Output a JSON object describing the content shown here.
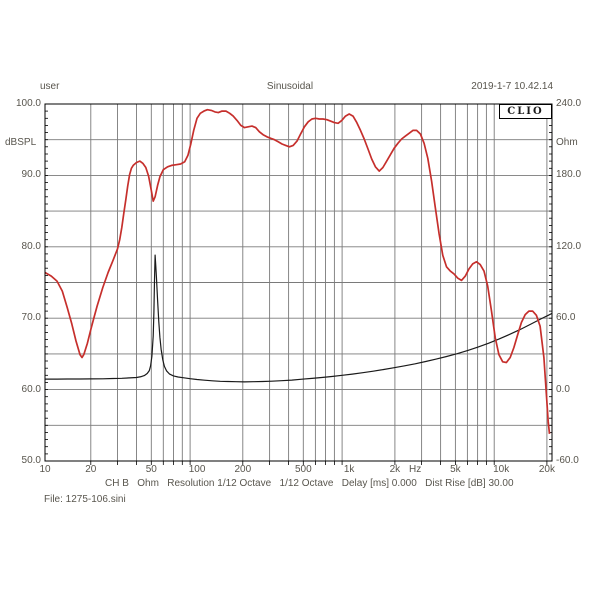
{
  "header": {
    "user": "user",
    "title": "Sinusoidal",
    "timestamp": "2019-1-7 10.42.14"
  },
  "badge": {
    "label": "CLIO"
  },
  "status_line": {
    "segments": [
      "CH B",
      "Ohm",
      "Resolution 1/12 Octave",
      "1/12 Octave",
      "Delay [ms] 0.000",
      "Dist Rise [dB] 30.00"
    ],
    "text": "CH B   Ohm   Resolution 1/12 Octave   1/12 Octave   Delay [ms] 0.000   Dist Rise [dB] 30.00"
  },
  "file_line": "File: 1275-106.sini",
  "colors": {
    "spl_curve": "#c62f2c",
    "impedance_curve": "#1a1a1a",
    "grid": "#7a7a7a",
    "border": "#000000",
    "text": "#58554d"
  },
  "chart_data": {
    "type": "line",
    "title": "Sinusoidal",
    "grid": true,
    "legend": "none",
    "x": {
      "scale": "log",
      "min": 10,
      "max": 21600,
      "unit": "Hz",
      "ticks": [
        {
          "f": 10,
          "label": "10"
        },
        {
          "f": 20,
          "label": "20"
        },
        {
          "f": 50,
          "label": "50"
        },
        {
          "f": 100,
          "label": "100"
        },
        {
          "f": 200,
          "label": "200"
        },
        {
          "f": 500,
          "label": "500"
        },
        {
          "f": 1000,
          "label": "1k"
        },
        {
          "f": 2000,
          "label": "2k"
        },
        {
          "f": 5000,
          "label": "5k"
        },
        {
          "f": 10000,
          "label": "10k"
        },
        {
          "f": 20000,
          "label": "20k"
        }
      ]
    },
    "y_left": {
      "label": "dBSPL",
      "min": 50,
      "max": 100,
      "gridline_step": 5,
      "ticks": [
        {
          "value": 100,
          "label": "100.0"
        },
        {
          "value": 90,
          "label": "90.0"
        },
        {
          "value": 80,
          "label": "80.0"
        },
        {
          "value": 70,
          "label": "70.0"
        },
        {
          "value": 60,
          "label": "60.0"
        },
        {
          "value": 50,
          "label": "50.0"
        }
      ]
    },
    "y_right": {
      "label": "Ohm",
      "min": -60,
      "max": 240,
      "ticks": [
        {
          "value": 240,
          "label": "240.0"
        },
        {
          "value": 180,
          "label": "180.0"
        },
        {
          "value": 120,
          "label": "120.0"
        },
        {
          "value": 60,
          "label": "60.0"
        },
        {
          "value": 0,
          "label": "0.0"
        },
        {
          "value": -60,
          "label": "-60.0"
        }
      ]
    },
    "series": [
      {
        "name": "SPL frequency response",
        "axis": "left",
        "unit": "dBSPL",
        "color": "#c62f2c",
        "points": [
          [
            10,
            76.4
          ],
          [
            11,
            75.9
          ],
          [
            12,
            75.2
          ],
          [
            13,
            73.8
          ],
          [
            14,
            71.5
          ],
          [
            15,
            69.2
          ],
          [
            16,
            66.8
          ],
          [
            17,
            64.9
          ],
          [
            17.5,
            64.5
          ],
          [
            18,
            64.9
          ],
          [
            19,
            66.5
          ],
          [
            20,
            68.4
          ],
          [
            21,
            70.1
          ],
          [
            22,
            71.7
          ],
          [
            24,
            74.3
          ],
          [
            26,
            76.4
          ],
          [
            28,
            78.1
          ],
          [
            30,
            79.7
          ],
          [
            31,
            81
          ],
          [
            32,
            82.7
          ],
          [
            33,
            84.7
          ],
          [
            34,
            86.6
          ],
          [
            35,
            88.5
          ],
          [
            36,
            90.1
          ],
          [
            37,
            91
          ],
          [
            38,
            91.4
          ],
          [
            40,
            91.8
          ],
          [
            42,
            92
          ],
          [
            44,
            91.7
          ],
          [
            46,
            91.1
          ],
          [
            48,
            89.9
          ],
          [
            50,
            87.9
          ],
          [
            51.5,
            86.4
          ],
          [
            53,
            87
          ],
          [
            55,
            88.6
          ],
          [
            57,
            89.8
          ],
          [
            60,
            90.8
          ],
          [
            64,
            91.2
          ],
          [
            68,
            91.4
          ],
          [
            73,
            91.5
          ],
          [
            78,
            91.6
          ],
          [
            83,
            91.9
          ],
          [
            87,
            92.8
          ],
          [
            91,
            94.4
          ],
          [
            95,
            96.3
          ],
          [
            100,
            98
          ],
          [
            105,
            98.7
          ],
          [
            111,
            99
          ],
          [
            117,
            99.2
          ],
          [
            124,
            99.1
          ],
          [
            131,
            98.9
          ],
          [
            138,
            98.8
          ],
          [
            146,
            99
          ],
          [
            155,
            99
          ],
          [
            164,
            98.7
          ],
          [
            173,
            98.3
          ],
          [
            183,
            97.7
          ],
          [
            194,
            97
          ],
          [
            205,
            96.7
          ],
          [
            217,
            96.8
          ],
          [
            230,
            96.9
          ],
          [
            243,
            96.7
          ],
          [
            257,
            96.1
          ],
          [
            272,
            95.7
          ],
          [
            288,
            95.4
          ],
          [
            305,
            95.2
          ],
          [
            323,
            95
          ],
          [
            342,
            94.7
          ],
          [
            362,
            94.4
          ],
          [
            383,
            94.2
          ],
          [
            405,
            94
          ],
          [
            429,
            94.2
          ],
          [
            454,
            94.8
          ],
          [
            480,
            95.8
          ],
          [
            508,
            96.8
          ],
          [
            538,
            97.5
          ],
          [
            569,
            97.9
          ],
          [
            602,
            98
          ],
          [
            637,
            97.9
          ],
          [
            674,
            97.9
          ],
          [
            714,
            97.8
          ],
          [
            755,
            97.6
          ],
          [
            799,
            97.4
          ],
          [
            846,
            97.3
          ],
          [
            895,
            97.7
          ],
          [
            947,
            98.3
          ],
          [
            1002,
            98.6
          ],
          [
            1061,
            98.3
          ],
          [
            1123,
            97.4
          ],
          [
            1188,
            96.3
          ],
          [
            1257,
            95.1
          ],
          [
            1331,
            93.7
          ],
          [
            1408,
            92.3
          ],
          [
            1490,
            91.2
          ],
          [
            1577,
            90.6
          ],
          [
            1669,
            91.1
          ],
          [
            1766,
            92
          ],
          [
            1869,
            92.9
          ],
          [
            1978,
            93.8
          ],
          [
            2094,
            94.5
          ],
          [
            2216,
            95.1
          ],
          [
            2345,
            95.5
          ],
          [
            2482,
            95.9
          ],
          [
            2626,
            96.3
          ],
          [
            2780,
            96.3
          ],
          [
            2942,
            95.8
          ],
          [
            3113,
            94.5
          ],
          [
            3295,
            92.4
          ],
          [
            3487,
            89.2
          ],
          [
            3690,
            85.5
          ],
          [
            3906,
            81.8
          ],
          [
            4133,
            78.8
          ],
          [
            4374,
            77.2
          ],
          [
            4629,
            76.6
          ],
          [
            4899,
            76.2
          ],
          [
            5185,
            75.6
          ],
          [
            5487,
            75.3
          ],
          [
            5807,
            75.9
          ],
          [
            6146,
            76.9
          ],
          [
            6504,
            77.6
          ],
          [
            6883,
            77.9
          ],
          [
            7285,
            77.5
          ],
          [
            7710,
            76.6
          ],
          [
            8160,
            74.5
          ],
          [
            8635,
            71
          ],
          [
            9139,
            67.3
          ],
          [
            9672,
            64.9
          ],
          [
            10236,
            63.9
          ],
          [
            10833,
            63.8
          ],
          [
            11465,
            64.5
          ],
          [
            12134,
            65.9
          ],
          [
            12842,
            67.7
          ],
          [
            13591,
            69.4
          ],
          [
            14384,
            70.5
          ],
          [
            15223,
            71
          ],
          [
            16111,
            71
          ],
          [
            17051,
            70.4
          ],
          [
            18045,
            68.9
          ],
          [
            19098,
            64.5
          ],
          [
            19800,
            59.5
          ],
          [
            20400,
            55.5
          ],
          [
            20800,
            53.8
          ]
        ]
      },
      {
        "name": "Impedance",
        "axis": "right",
        "unit": "Ohm",
        "color": "#1a1a1a",
        "points": [
          [
            10,
            8.8
          ],
          [
            12,
            8.8
          ],
          [
            14,
            8.9
          ],
          [
            17,
            8.9
          ],
          [
            20,
            9
          ],
          [
            24,
            9.1
          ],
          [
            28,
            9.3
          ],
          [
            32,
            9.5
          ],
          [
            36,
            9.8
          ],
          [
            40,
            10.2
          ],
          [
            43,
            10.9
          ],
          [
            45,
            11.8
          ],
          [
            47,
            13.5
          ],
          [
            48.5,
            16
          ],
          [
            49.5,
            20
          ],
          [
            50.5,
            28
          ],
          [
            51.5,
            45
          ],
          [
            52,
            65
          ],
          [
            52.5,
            92
          ],
          [
            53,
            113
          ],
          [
            53.5,
            105
          ],
          [
            54,
            95
          ],
          [
            55,
            75
          ],
          [
            56,
            57
          ],
          [
            57,
            44
          ],
          [
            58,
            34
          ],
          [
            59.5,
            25
          ],
          [
            61,
            19.5
          ],
          [
            63,
            15.8
          ],
          [
            66,
            13
          ],
          [
            70,
            11.5
          ],
          [
            75,
            10.6
          ],
          [
            82,
            9.9
          ],
          [
            90,
            9.2
          ],
          [
            100,
            8.5
          ],
          [
            112,
            7.9
          ],
          [
            126,
            7.4
          ],
          [
            142,
            7
          ],
          [
            160,
            6.8
          ],
          [
            180,
            6.6
          ],
          [
            205,
            6.5
          ],
          [
            235,
            6.6
          ],
          [
            270,
            6.8
          ],
          [
            310,
            7.1
          ],
          [
            360,
            7.5
          ],
          [
            420,
            8
          ],
          [
            490,
            8.7
          ],
          [
            570,
            9.4
          ],
          [
            660,
            10.2
          ],
          [
            770,
            11
          ],
          [
            900,
            12
          ],
          [
            1050,
            13
          ],
          [
            1230,
            14.2
          ],
          [
            1440,
            15.5
          ],
          [
            1690,
            16.9
          ],
          [
            1980,
            18.4
          ],
          [
            2320,
            20
          ],
          [
            2720,
            21.7
          ],
          [
            3190,
            23.6
          ],
          [
            3740,
            25.6
          ],
          [
            4380,
            27.8
          ],
          [
            5130,
            30.2
          ],
          [
            6010,
            32.8
          ],
          [
            7040,
            35.7
          ],
          [
            8250,
            38.9
          ],
          [
            9670,
            42.4
          ],
          [
            11300,
            46.2
          ],
          [
            13300,
            50.4
          ],
          [
            15500,
            54.7
          ],
          [
            18200,
            59.3
          ],
          [
            20500,
            62.5
          ],
          [
            21600,
            64
          ]
        ]
      }
    ]
  }
}
